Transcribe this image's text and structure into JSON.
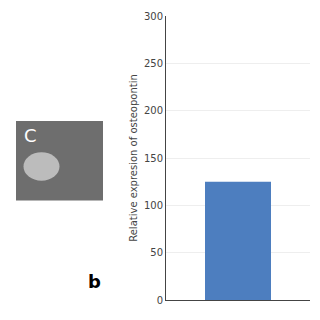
{
  "chart_data": {
    "type": "bar",
    "categories": [
      null
    ],
    "values": [
      125
    ],
    "color": "#4d7ebf",
    "ylabel": "Relative expresion of osteopontin",
    "ylim": [
      0,
      300
    ],
    "yticks": [
      0,
      50,
      100,
      150,
      200,
      250,
      300
    ],
    "grid": true,
    "tick_labels": "y",
    "annotations": [
      "C",
      "b"
    ]
  }
}
